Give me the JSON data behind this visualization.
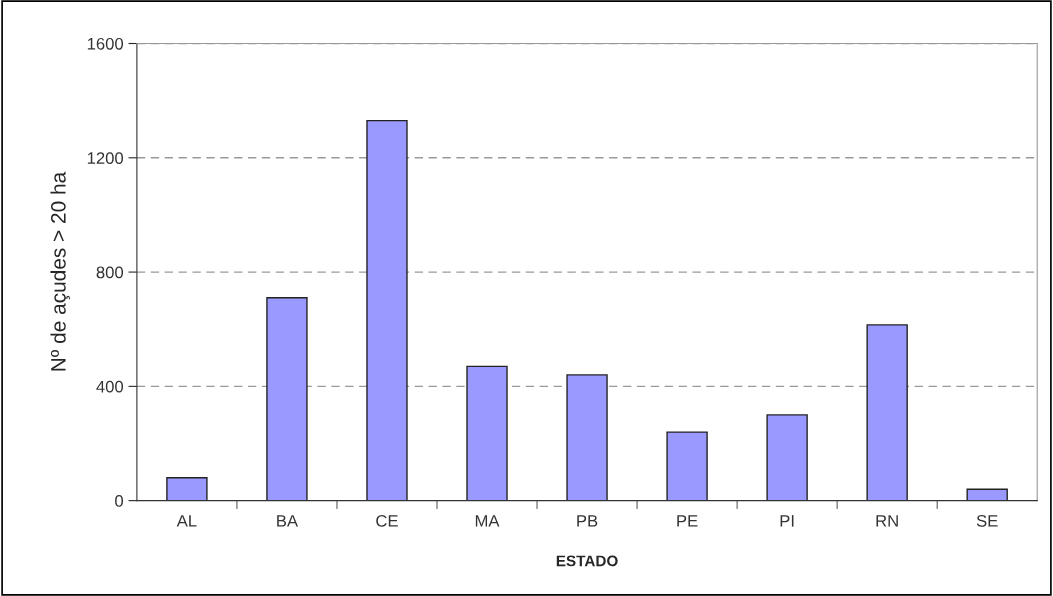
{
  "chart_data": {
    "type": "bar",
    "xlabel": "ESTADO",
    "ylabel": "Nº de açudes > 20 ha",
    "categories": [
      "AL",
      "BA",
      "CE",
      "MA",
      "PB",
      "PE",
      "PI",
      "RN",
      "SE"
    ],
    "values": [
      80,
      710,
      1330,
      470,
      440,
      240,
      300,
      615,
      40
    ],
    "color": "#9999ff",
    "ylim": [
      0,
      1600
    ],
    "yticks": [
      0,
      400,
      800,
      1200,
      1600
    ],
    "grid": "y",
    "legend": false
  }
}
